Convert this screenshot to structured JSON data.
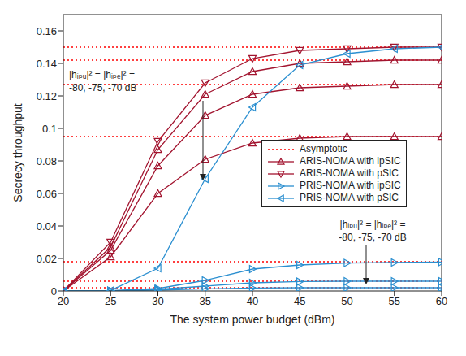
{
  "chart_data": {
    "type": "line",
    "x_label": "The system power budget (dBm)",
    "y_label": "Secrecy throughput",
    "x": [
      20,
      25,
      30,
      35,
      40,
      45,
      50,
      55,
      60
    ],
    "xlim": [
      20,
      60
    ],
    "xticks": [
      20,
      25,
      30,
      35,
      40,
      45,
      50,
      55,
      60
    ],
    "ylim": [
      0,
      0.17
    ],
    "yticks": [
      0,
      0.02,
      0.04,
      0.06,
      0.08,
      0.1,
      0.12,
      0.14,
      0.16
    ],
    "grid": false,
    "legend": "right",
    "series": [
      {
        "name": "Asymptotic",
        "color": "#ff0000",
        "marker": "none",
        "line_style": "dotted",
        "values": [
          0.15,
          0.15,
          0.15,
          0.15,
          0.15,
          0.15,
          0.15,
          0.15,
          0.15
        ]
      },
      {
        "name": "Asymptotic",
        "color": "#ff0000",
        "marker": "none",
        "line_style": "dotted",
        "values": [
          0.142,
          0.142,
          0.142,
          0.142,
          0.142,
          0.142,
          0.142,
          0.142,
          0.142
        ]
      },
      {
        "name": "Asymptotic",
        "color": "#ff0000",
        "marker": "none",
        "line_style": "dotted",
        "values": [
          0.127,
          0.127,
          0.127,
          0.127,
          0.127,
          0.127,
          0.127,
          0.127,
          0.127
        ]
      },
      {
        "name": "Asymptotic",
        "color": "#ff0000",
        "marker": "none",
        "line_style": "dotted",
        "values": [
          0.095,
          0.095,
          0.095,
          0.095,
          0.095,
          0.095,
          0.095,
          0.095,
          0.095
        ]
      },
      {
        "name": "Asymptotic",
        "color": "#ff0000",
        "marker": "none",
        "line_style": "dotted",
        "values": [
          0.018,
          0.018,
          0.018,
          0.018,
          0.018,
          0.018,
          0.018,
          0.018,
          0.018
        ]
      },
      {
        "name": "Asymptotic",
        "color": "#ff0000",
        "marker": "none",
        "line_style": "dotted",
        "values": [
          0.006,
          0.006,
          0.006,
          0.006,
          0.006,
          0.006,
          0.006,
          0.006,
          0.006
        ]
      },
      {
        "name": "Asymptotic",
        "color": "#ff0000",
        "marker": "none",
        "line_style": "dotted",
        "values": [
          0.002,
          0.002,
          0.002,
          0.002,
          0.002,
          0.002,
          0.002,
          0.002,
          0.002
        ]
      },
      {
        "name": "ARIS-NOMA with ipSIC",
        "color": "#a2142f",
        "marker": "triangle-up",
        "line_style": "solid",
        "values": [
          0,
          0.027,
          0.087,
          0.121,
          0.135,
          0.14,
          0.141,
          0.142,
          0.142
        ]
      },
      {
        "name": "ARIS-NOMA with ipSIC",
        "color": "#a2142f",
        "marker": "triangle-up",
        "line_style": "solid",
        "values": [
          0,
          0.025,
          0.077,
          0.108,
          0.121,
          0.125,
          0.126,
          0.127,
          0.127
        ]
      },
      {
        "name": "ARIS-NOMA with ipSIC",
        "color": "#a2142f",
        "marker": "triangle-up",
        "line_style": "solid",
        "values": [
          0,
          0.021,
          0.06,
          0.081,
          0.091,
          0.094,
          0.095,
          0.095,
          0.095
        ]
      },
      {
        "name": "ARIS-NOMA with pSIC",
        "color": "#a2142f",
        "marker": "triangle-down",
        "line_style": "solid",
        "values": [
          0,
          0.03,
          0.092,
          0.128,
          0.143,
          0.148,
          0.149,
          0.15,
          0.15
        ]
      },
      {
        "name": "PRIS-NOMA with ipSIC",
        "color": "#2b8fd0",
        "marker": "triangle-right",
        "line_style": "solid",
        "values": [
          0,
          0.0002,
          0.0015,
          0.0065,
          0.0135,
          0.016,
          0.0172,
          0.0175,
          0.0178
        ]
      },
      {
        "name": "PRIS-NOMA with ipSIC",
        "color": "#2b8fd0",
        "marker": "triangle-right",
        "line_style": "solid",
        "values": [
          0,
          0.0001,
          0.001,
          0.003,
          0.005,
          0.0058,
          0.006,
          0.006,
          0.006
        ]
      },
      {
        "name": "PRIS-NOMA with ipSIC",
        "color": "#2b8fd0",
        "marker": "triangle-right",
        "line_style": "solid",
        "values": [
          0,
          0,
          0.0005,
          0.0013,
          0.0018,
          0.002,
          0.002,
          0.002,
          0.002
        ]
      },
      {
        "name": "PRIS-NOMA with pSIC",
        "color": "#2b8fd0",
        "marker": "triangle-left",
        "line_style": "solid",
        "values": [
          0,
          0.0003,
          0.014,
          0.069,
          0.113,
          0.139,
          0.146,
          0.149,
          0.15
        ]
      }
    ],
    "annotations": [
      {
        "text": "|hᵢₚᵤ|² = |hᵢₚₑ|² ="
      },
      {
        "text": "-80, -75, -70 dB"
      },
      {
        "text": "|hᵢₚᵤ|² = |hᵢₚₑ|² ="
      },
      {
        "text": "-80, -75, -70 dB"
      }
    ]
  }
}
